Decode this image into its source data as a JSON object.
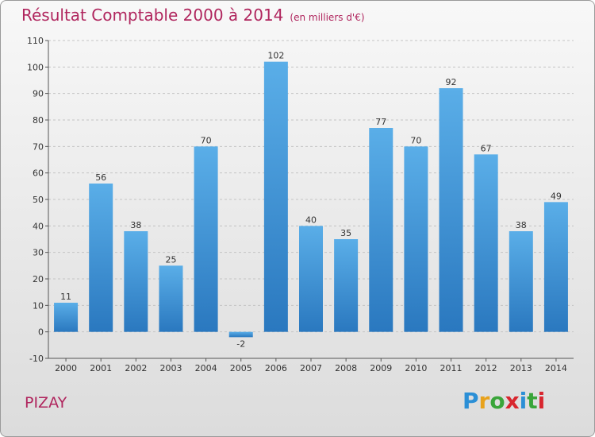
{
  "header": {
    "title": "Résultat Comptable 2000 à 2014",
    "subtitle": "(en milliers d'€)"
  },
  "footer": {
    "commune": "PIZAY",
    "logo": {
      "letters": [
        "P",
        "r",
        "o",
        "x",
        "i",
        "t",
        "i"
      ],
      "colors": [
        "#2b8fd6",
        "#e8a21c",
        "#3aa53a",
        "#d8262e",
        "#2b8fd6",
        "#3aa53a",
        "#d8262e"
      ]
    }
  },
  "chart_data": {
    "type": "bar",
    "categories": [
      "2000",
      "2001",
      "2002",
      "2003",
      "2004",
      "2005",
      "2006",
      "2007",
      "2008",
      "2009",
      "2010",
      "2011",
      "2012",
      "2013",
      "2014"
    ],
    "values": [
      11,
      56,
      38,
      25,
      70,
      -2,
      102,
      40,
      35,
      77,
      70,
      92,
      67,
      38,
      49
    ],
    "ylim": [
      -10,
      110
    ],
    "yticks": [
      -10,
      0,
      10,
      20,
      30,
      40,
      50,
      60,
      70,
      80,
      90,
      100,
      110
    ],
    "grid": true,
    "bar_color_top": "#5aaee8",
    "bar_color_bottom": "#2a78bf"
  }
}
